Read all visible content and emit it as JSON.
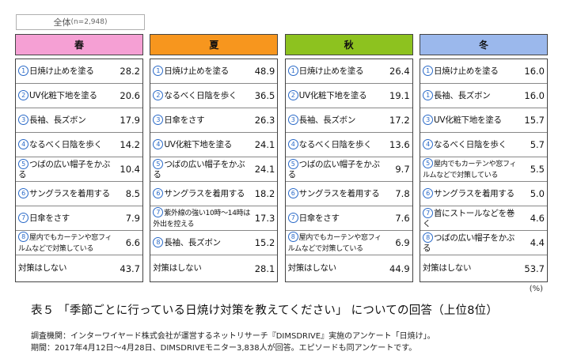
{
  "total_label": "全体",
  "total_n": "(n=2,948)",
  "seasons": [
    {
      "name": "春",
      "color": "#f5a0d4",
      "rows": [
        {
          "rank": "1",
          "label": "日焼け止めを塗る",
          "value": "28.2"
        },
        {
          "rank": "2",
          "label": "UV化粧下地を塗る",
          "value": "20.6"
        },
        {
          "rank": "3",
          "label": "長袖、長ズボン",
          "value": "17.9"
        },
        {
          "rank": "4",
          "label": "なるべく日陰を歩く",
          "value": "14.2"
        },
        {
          "rank": "5",
          "label": "つばの広い帽子をかぶる",
          "value": "10.4"
        },
        {
          "rank": "6",
          "label": "サングラスを着用する",
          "value": "8.5"
        },
        {
          "rank": "7",
          "label": "日傘をさす",
          "value": "7.9"
        },
        {
          "rank": "8",
          "label": "屋内でもカーテンや窓フィルムなどで対策している",
          "value": "6.6"
        }
      ],
      "none_label": "対策はしない",
      "none_value": "43.7"
    },
    {
      "name": "夏",
      "color": "#f7961e",
      "rows": [
        {
          "rank": "1",
          "label": "日焼け止めを塗る",
          "value": "48.9"
        },
        {
          "rank": "2",
          "label": "なるべく日陰を歩く",
          "value": "36.5"
        },
        {
          "rank": "3",
          "label": "日傘をさす",
          "value": "26.3"
        },
        {
          "rank": "4",
          "label": "UV化粧下地を塗る",
          "value": "24.1"
        },
        {
          "rank": "5",
          "label": "つばの広い帽子をかぶる",
          "value": "24.1"
        },
        {
          "rank": "6",
          "label": "サングラスを着用する",
          "value": "18.2"
        },
        {
          "rank": "7",
          "label": "紫外線の強い10時～14時は外出を控える",
          "value": "17.3"
        },
        {
          "rank": "8",
          "label": "長袖、長ズボン",
          "value": "15.2"
        }
      ],
      "none_label": "対策はしない",
      "none_value": "28.1"
    },
    {
      "name": "秋",
      "color": "#8dc21f",
      "rows": [
        {
          "rank": "1",
          "label": "日焼け止めを塗る",
          "value": "26.4"
        },
        {
          "rank": "2",
          "label": "UV化粧下地を塗る",
          "value": "19.1"
        },
        {
          "rank": "3",
          "label": "長袖、長ズボン",
          "value": "17.2"
        },
        {
          "rank": "4",
          "label": "なるべく日陰を歩く",
          "value": "13.6"
        },
        {
          "rank": "5",
          "label": "つばの広い帽子をかぶる",
          "value": "9.7"
        },
        {
          "rank": "6",
          "label": "サングラスを着用する",
          "value": "7.8"
        },
        {
          "rank": "7",
          "label": "日傘をさす",
          "value": "7.6"
        },
        {
          "rank": "8",
          "label": "屋内でもカーテンや窓フィルムなどで対策している",
          "value": "6.9"
        }
      ],
      "none_label": "対策はしない",
      "none_value": "44.9"
    },
    {
      "name": "冬",
      "color": "#9bb8ec",
      "rows": [
        {
          "rank": "1",
          "label": "日焼け止めを塗る",
          "value": "16.0"
        },
        {
          "rank": "1",
          "label": "長袖、長ズボン",
          "value": "16.0"
        },
        {
          "rank": "3",
          "label": "UV化粧下地を塗る",
          "value": "15.7"
        },
        {
          "rank": "4",
          "label": "なるべく日陰を歩く",
          "value": "5.7"
        },
        {
          "rank": "5",
          "label": "屋内でもカーテンや窓フィルムなどで対策している",
          "value": "5.5"
        },
        {
          "rank": "6",
          "label": "サングラスを着用する",
          "value": "5.0"
        },
        {
          "rank": "7",
          "label": "首にストールなどを巻く",
          "value": "4.6"
        },
        {
          "rank": "8",
          "label": "つばの広い帽子をかぶる",
          "value": "4.4"
        }
      ],
      "none_label": "対策はしない",
      "none_value": "53.7"
    }
  ],
  "unit": "(%)",
  "caption": "表５ 「季節ごとに行っている日焼け対策を教えてください」 についての回答（上位8位）",
  "note1": "調査機関：インターワイヤード株式会社が運営するネットリサーチ『DIMSDRIVE』実施のアンケート「日焼け」。",
  "note2": "期間：2017年4月12日～4月28日、DIMSDRIVEモニター3,838人が回答。エピソードも同アンケートです。"
}
